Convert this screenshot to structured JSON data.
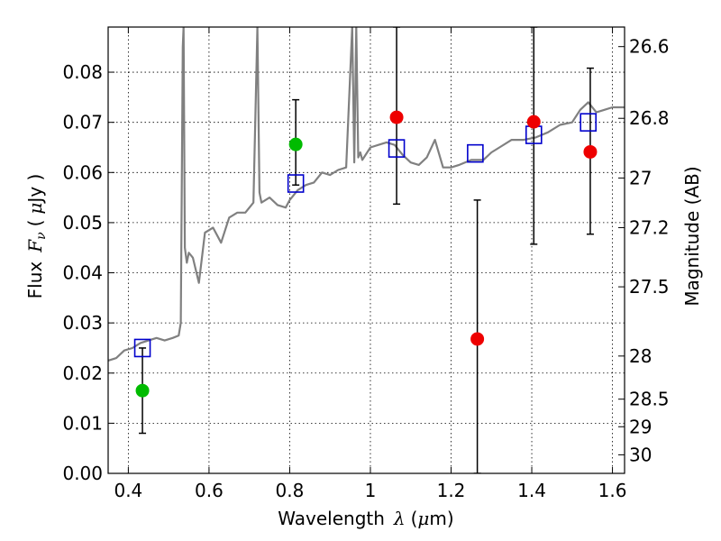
{
  "chart_data": {
    "type": "scatter",
    "xlabel": {
      "text": "Wavelength",
      "symbol": "λ",
      "unit_open": "(",
      "unit_mu": "μ",
      "unit_rest": "m)"
    },
    "ylabel": {
      "text": "Flux",
      "symbol": "F",
      "subscript": "ν",
      "unit_open": "(",
      "unit_mu": "μ",
      "unit_rest": "Jy )"
    },
    "y2label": "Magnitude (AB)",
    "xlim": [
      0.35,
      1.63
    ],
    "ylim": [
      0.0,
      0.089
    ],
    "grid": true,
    "xticks": [
      {
        "value": 0.4,
        "label": "0.4"
      },
      {
        "value": 0.6,
        "label": "0.6"
      },
      {
        "value": 0.8,
        "label": "0.8"
      },
      {
        "value": 1.0,
        "label": "1"
      },
      {
        "value": 1.2,
        "label": "1.2"
      },
      {
        "value": 1.4,
        "label": "1.4"
      },
      {
        "value": 1.6,
        "label": "1.6"
      }
    ],
    "yticks": [
      {
        "value": 0.0,
        "label": "0.00"
      },
      {
        "value": 0.01,
        "label": "0.01"
      },
      {
        "value": 0.02,
        "label": "0.02"
      },
      {
        "value": 0.03,
        "label": "0.03"
      },
      {
        "value": 0.04,
        "label": "0.04"
      },
      {
        "value": 0.05,
        "label": "0.05"
      },
      {
        "value": 0.06,
        "label": "0.06"
      },
      {
        "value": 0.07,
        "label": "0.07"
      },
      {
        "value": 0.08,
        "label": "0.08"
      }
    ],
    "y2ticks": [
      {
        "flux": 0.0851,
        "label": "26.6"
      },
      {
        "flux": 0.0708,
        "label": "26.8"
      },
      {
        "flux": 0.0589,
        "label": "27"
      },
      {
        "flux": 0.049,
        "label": "27.2"
      },
      {
        "flux": 0.0372,
        "label": "27.5"
      },
      {
        "flux": 0.0234,
        "label": "28"
      },
      {
        "flux": 0.0148,
        "label": "28.5"
      },
      {
        "flux": 0.0093,
        "label": "29"
      },
      {
        "flux": 0.0037,
        "label": "30"
      }
    ],
    "model_spectrum": {
      "color": "#808080",
      "x": [
        0.35,
        0.37,
        0.39,
        0.41,
        0.43,
        0.45,
        0.47,
        0.49,
        0.51,
        0.525,
        0.53,
        0.535,
        0.537,
        0.54,
        0.545,
        0.55,
        0.56,
        0.575,
        0.59,
        0.61,
        0.63,
        0.65,
        0.67,
        0.69,
        0.71,
        0.72,
        0.725,
        0.73,
        0.75,
        0.77,
        0.79,
        0.8,
        0.82,
        0.84,
        0.86,
        0.88,
        0.9,
        0.92,
        0.94,
        0.955,
        0.96,
        0.965,
        0.97,
        0.975,
        0.98,
        1.0,
        1.02,
        1.04,
        1.06,
        1.08,
        1.1,
        1.12,
        1.14,
        1.16,
        1.18,
        1.2,
        1.22,
        1.25,
        1.28,
        1.3,
        1.32,
        1.35,
        1.38,
        1.41,
        1.44,
        1.47,
        1.5,
        1.52,
        1.54,
        1.56,
        1.58,
        1.6,
        1.63
      ],
      "y": [
        0.0225,
        0.023,
        0.0245,
        0.025,
        0.026,
        0.0265,
        0.027,
        0.0265,
        0.027,
        0.0275,
        0.03,
        0.085,
        0.089,
        0.045,
        0.042,
        0.044,
        0.043,
        0.038,
        0.048,
        0.049,
        0.046,
        0.051,
        0.052,
        0.052,
        0.054,
        0.089,
        0.056,
        0.054,
        0.055,
        0.0535,
        0.053,
        0.0545,
        0.0565,
        0.0575,
        0.058,
        0.06,
        0.0595,
        0.0605,
        0.061,
        0.089,
        0.062,
        0.089,
        0.063,
        0.064,
        0.0625,
        0.065,
        0.0655,
        0.066,
        0.0655,
        0.0635,
        0.062,
        0.0615,
        0.063,
        0.0665,
        0.061,
        0.061,
        0.0615,
        0.0625,
        0.0625,
        0.064,
        0.065,
        0.0665,
        0.0665,
        0.067,
        0.068,
        0.0695,
        0.07,
        0.0725,
        0.074,
        0.072,
        0.0725,
        0.073,
        0.073
      ]
    },
    "series": [
      {
        "marker": "square-open",
        "color": "#0000cc",
        "points": [
          {
            "x": 0.435,
            "y": 0.025
          },
          {
            "x": 0.815,
            "y": 0.0578
          },
          {
            "x": 1.065,
            "y": 0.0648
          },
          {
            "x": 1.26,
            "y": 0.0638
          },
          {
            "x": 1.405,
            "y": 0.0675
          },
          {
            "x": 1.54,
            "y": 0.07
          }
        ]
      },
      {
        "marker": "circle",
        "color": "#00bb00",
        "points": [
          {
            "x": 0.435,
            "y": 0.0165,
            "yerr_low": 0.008,
            "yerr_high": 0.025
          },
          {
            "x": 0.815,
            "y": 0.0656,
            "yerr_low": 0.0575,
            "yerr_high": 0.0745
          }
        ]
      },
      {
        "marker": "circle",
        "color": "#ee0000",
        "points": [
          {
            "x": 1.065,
            "y": 0.071,
            "yerr_low": 0.0537,
            "yerr_high": 0.089
          },
          {
            "x": 1.265,
            "y": 0.0268,
            "yerr_low": 0.0,
            "yerr_high": 0.0545
          },
          {
            "x": 1.405,
            "y": 0.0701,
            "yerr_low": 0.0457,
            "yerr_high": 0.089
          },
          {
            "x": 1.545,
            "y": 0.0641,
            "yerr_low": 0.0477,
            "yerr_high": 0.0808
          }
        ]
      }
    ]
  }
}
